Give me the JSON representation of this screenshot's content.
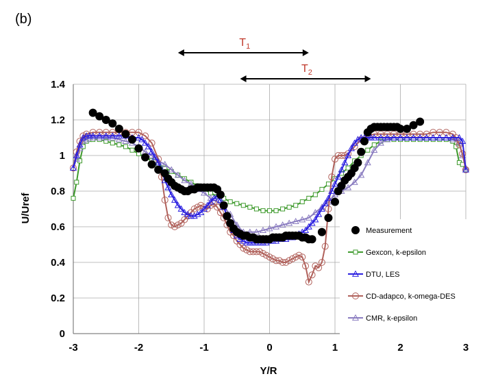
{
  "panel_label": "(b)",
  "colors": {
    "measurement": "#000000",
    "gexcon": "#3e9a2c",
    "dtu": "#2a1fe0",
    "cdadapco": "#b0605a",
    "cmr": "#8a7cc0",
    "grid": "#aaaaaa",
    "annotation": "#c0392b"
  },
  "annotations": [
    {
      "label": "T",
      "sub": "1",
      "x_start": -1.4,
      "x_end": 0.6
    },
    {
      "label": "T",
      "sub": "2",
      "x_start": -0.45,
      "x_end": 1.55
    }
  ],
  "chart_data": {
    "type": "line",
    "title": "",
    "xlabel": "Y/R",
    "ylabel": "U/Uref",
    "xlim": [
      -3,
      3
    ],
    "ylim": [
      0,
      1.4
    ],
    "xticks": [
      -3,
      -2,
      -1,
      0,
      1,
      2,
      3
    ],
    "yticks": [
      0,
      0.2,
      0.4,
      0.6,
      0.8,
      1,
      1.2,
      1.4
    ],
    "xtick_labels": [
      "-3",
      "-2",
      "-1",
      "0",
      "1",
      "2",
      "3"
    ],
    "ytick_labels": [
      "0",
      "0.2",
      "0.4",
      "0.6",
      "0.8",
      "1",
      "1.2",
      "1.4"
    ],
    "grid": true,
    "legend_position": "right",
    "series": [
      {
        "name": "Measurement",
        "style": "markers",
        "marker": "filled-circle",
        "x": [
          -2.7,
          -2.6,
          -2.5,
          -2.4,
          -2.3,
          -2.2,
          -2.1,
          -2.0,
          -1.9,
          -1.8,
          -1.7,
          -1.6,
          -1.55,
          -1.5,
          -1.45,
          -1.4,
          -1.35,
          -1.3,
          -1.25,
          -1.2,
          -1.15,
          -1.1,
          -1.05,
          -1.0,
          -0.95,
          -0.9,
          -0.85,
          -0.8,
          -0.75,
          -0.7,
          -0.65,
          -0.6,
          -0.55,
          -0.5,
          -0.45,
          -0.4,
          -0.35,
          -0.3,
          -0.25,
          -0.2,
          -0.15,
          -0.1,
          -0.05,
          0.0,
          0.05,
          0.1,
          0.15,
          0.2,
          0.25,
          0.3,
          0.35,
          0.4,
          0.45,
          0.5,
          0.55,
          0.6,
          0.65,
          0.8,
          0.9,
          1.0,
          1.05,
          1.1,
          1.15,
          1.2,
          1.25,
          1.3,
          1.35,
          1.4,
          1.45,
          1.5,
          1.55,
          1.6,
          1.65,
          1.7,
          1.75,
          1.8,
          1.85,
          1.9,
          1.95,
          2.0,
          2.1,
          2.2,
          2.3
        ],
        "y": [
          1.24,
          1.22,
          1.2,
          1.18,
          1.15,
          1.12,
          1.09,
          1.04,
          0.99,
          0.95,
          0.92,
          0.9,
          0.87,
          0.85,
          0.83,
          0.82,
          0.81,
          0.8,
          0.8,
          0.81,
          0.81,
          0.82,
          0.82,
          0.82,
          0.82,
          0.82,
          0.82,
          0.81,
          0.78,
          0.72,
          0.66,
          0.62,
          0.59,
          0.57,
          0.56,
          0.55,
          0.55,
          0.54,
          0.54,
          0.53,
          0.53,
          0.53,
          0.53,
          0.53,
          0.54,
          0.54,
          0.54,
          0.54,
          0.55,
          0.55,
          0.55,
          0.55,
          0.55,
          0.54,
          0.54,
          0.53,
          0.53,
          0.57,
          0.65,
          0.74,
          0.8,
          0.83,
          0.86,
          0.88,
          0.9,
          0.93,
          0.96,
          1.02,
          1.08,
          1.13,
          1.15,
          1.16,
          1.16,
          1.16,
          1.16,
          1.16,
          1.16,
          1.16,
          1.16,
          1.15,
          1.15,
          1.17,
          1.19
        ]
      },
      {
        "name": "Gexcon, k-epsilon",
        "style": "line-markers",
        "marker": "square",
        "x": [
          -3.0,
          -2.95,
          -2.9,
          -2.85,
          -2.8,
          -2.75,
          -2.7,
          -2.6,
          -2.5,
          -2.4,
          -2.3,
          -2.2,
          -2.1,
          -2.0,
          -1.9,
          -1.8,
          -1.7,
          -1.6,
          -1.5,
          -1.4,
          -1.3,
          -1.2,
          -1.1,
          -1.0,
          -0.9,
          -0.8,
          -0.7,
          -0.6,
          -0.5,
          -0.4,
          -0.3,
          -0.2,
          -0.1,
          0.0,
          0.1,
          0.2,
          0.3,
          0.4,
          0.5,
          0.6,
          0.7,
          0.8,
          0.9,
          1.0,
          1.1,
          1.2,
          1.3,
          1.4,
          1.5,
          1.6,
          1.7,
          1.8,
          1.9,
          2.0,
          2.1,
          2.2,
          2.3,
          2.4,
          2.5,
          2.6,
          2.7,
          2.8,
          2.85,
          2.9,
          2.95,
          3.0
        ],
        "y": [
          0.76,
          0.85,
          0.97,
          1.05,
          1.08,
          1.09,
          1.09,
          1.09,
          1.08,
          1.07,
          1.06,
          1.05,
          1.03,
          1.01,
          0.99,
          0.97,
          0.95,
          0.93,
          0.91,
          0.89,
          0.87,
          0.85,
          0.83,
          0.81,
          0.79,
          0.77,
          0.76,
          0.74,
          0.73,
          0.72,
          0.71,
          0.7,
          0.69,
          0.69,
          0.69,
          0.7,
          0.71,
          0.72,
          0.74,
          0.76,
          0.78,
          0.81,
          0.84,
          0.87,
          0.9,
          0.93,
          0.97,
          1.0,
          1.03,
          1.06,
          1.08,
          1.09,
          1.09,
          1.09,
          1.09,
          1.09,
          1.09,
          1.09,
          1.09,
          1.09,
          1.09,
          1.08,
          1.05,
          0.96,
          0.95,
          0.92
        ]
      },
      {
        "name": "DTU, LES",
        "style": "line-markers",
        "marker": "triangle",
        "x": [
          -3.0,
          -2.95,
          -2.9,
          -2.85,
          -2.8,
          -2.75,
          -2.7,
          -2.6,
          -2.5,
          -2.4,
          -2.3,
          -2.2,
          -2.1,
          -2.0,
          -1.95,
          -1.9,
          -1.85,
          -1.8,
          -1.75,
          -1.7,
          -1.65,
          -1.6,
          -1.55,
          -1.5,
          -1.45,
          -1.4,
          -1.35,
          -1.3,
          -1.25,
          -1.2,
          -1.15,
          -1.1,
          -1.05,
          -1.0,
          -0.95,
          -0.9,
          -0.85,
          -0.8,
          -0.75,
          -0.7,
          -0.65,
          -0.6,
          -0.55,
          -0.5,
          -0.45,
          -0.4,
          -0.35,
          -0.3,
          -0.25,
          -0.2,
          -0.15,
          -0.1,
          -0.05,
          0.0,
          0.05,
          0.1,
          0.15,
          0.2,
          0.25,
          0.3,
          0.35,
          0.4,
          0.45,
          0.5,
          0.55,
          0.6,
          0.65,
          0.7,
          0.75,
          0.8,
          0.85,
          0.9,
          0.95,
          1.0,
          1.05,
          1.1,
          1.15,
          1.2,
          1.25,
          1.3,
          1.35,
          1.4,
          1.45,
          1.5,
          1.55,
          1.6,
          1.7,
          1.8,
          1.9,
          2.0,
          2.1,
          2.2,
          2.3,
          2.4,
          2.5,
          2.6,
          2.7,
          2.8,
          2.9,
          2.95,
          3.0
        ],
        "y": [
          0.93,
          1.0,
          1.06,
          1.1,
          1.11,
          1.11,
          1.11,
          1.11,
          1.11,
          1.11,
          1.11,
          1.11,
          1.1,
          1.1,
          1.09,
          1.07,
          1.05,
          1.02,
          0.99,
          0.96,
          0.92,
          0.86,
          0.82,
          0.78,
          0.75,
          0.72,
          0.7,
          0.68,
          0.67,
          0.66,
          0.66,
          0.67,
          0.68,
          0.7,
          0.72,
          0.74,
          0.76,
          0.77,
          0.75,
          0.71,
          0.66,
          0.62,
          0.58,
          0.55,
          0.53,
          0.52,
          0.51,
          0.51,
          0.51,
          0.51,
          0.51,
          0.51,
          0.51,
          0.52,
          0.52,
          0.52,
          0.53,
          0.53,
          0.53,
          0.54,
          0.54,
          0.55,
          0.56,
          0.57,
          0.58,
          0.6,
          0.62,
          0.64,
          0.67,
          0.7,
          0.73,
          0.76,
          0.8,
          0.84,
          0.88,
          0.92,
          0.96,
          1.0,
          1.04,
          1.07,
          1.09,
          1.1,
          1.1,
          1.1,
          1.1,
          1.1,
          1.1,
          1.1,
          1.1,
          1.1,
          1.1,
          1.1,
          1.1,
          1.1,
          1.1,
          1.1,
          1.1,
          1.1,
          1.1,
          1.08,
          0.92
        ]
      },
      {
        "name": "CD-adapco, k-omega-DES",
        "style": "line-markers",
        "marker": "circle",
        "x": [
          -3.0,
          -2.95,
          -2.9,
          -2.85,
          -2.8,
          -2.7,
          -2.6,
          -2.5,
          -2.4,
          -2.3,
          -2.2,
          -2.1,
          -2.0,
          -1.9,
          -1.8,
          -1.7,
          -1.65,
          -1.6,
          -1.55,
          -1.5,
          -1.45,
          -1.4,
          -1.35,
          -1.3,
          -1.25,
          -1.2,
          -1.15,
          -1.1,
          -1.05,
          -1.0,
          -0.95,
          -0.9,
          -0.85,
          -0.8,
          -0.75,
          -0.7,
          -0.65,
          -0.6,
          -0.55,
          -0.5,
          -0.45,
          -0.4,
          -0.35,
          -0.3,
          -0.25,
          -0.2,
          -0.15,
          -0.1,
          -0.05,
          0.0,
          0.05,
          0.1,
          0.15,
          0.2,
          0.25,
          0.3,
          0.35,
          0.4,
          0.45,
          0.5,
          0.55,
          0.6,
          0.65,
          0.7,
          0.75,
          0.8,
          0.85,
          0.9,
          0.95,
          1.0,
          1.05,
          1.1,
          1.15,
          1.2,
          1.3,
          1.4,
          1.5,
          1.6,
          1.7,
          1.8,
          1.9,
          2.0,
          2.1,
          2.2,
          2.3,
          2.4,
          2.5,
          2.6,
          2.7,
          2.8,
          2.85,
          2.9,
          2.95,
          3.0
        ],
        "y": [
          0.93,
          1.02,
          1.08,
          1.11,
          1.12,
          1.13,
          1.13,
          1.13,
          1.13,
          1.13,
          1.13,
          1.13,
          1.13,
          1.11,
          1.07,
          0.98,
          0.88,
          0.75,
          0.65,
          0.61,
          0.6,
          0.61,
          0.62,
          0.64,
          0.66,
          0.68,
          0.7,
          0.71,
          0.72,
          0.71,
          0.7,
          0.72,
          0.73,
          0.71,
          0.68,
          0.65,
          0.61,
          0.57,
          0.55,
          0.52,
          0.5,
          0.48,
          0.47,
          0.46,
          0.46,
          0.46,
          0.46,
          0.45,
          0.44,
          0.43,
          0.42,
          0.41,
          0.41,
          0.4,
          0.4,
          0.41,
          0.42,
          0.43,
          0.44,
          0.43,
          0.38,
          0.29,
          0.33,
          0.38,
          0.37,
          0.4,
          0.49,
          0.7,
          0.88,
          0.98,
          1.0,
          1.0,
          1.0,
          1.01,
          1.05,
          1.09,
          1.11,
          1.12,
          1.12,
          1.12,
          1.12,
          1.12,
          1.12,
          1.12,
          1.12,
          1.12,
          1.13,
          1.13,
          1.13,
          1.12,
          1.1,
          1.06,
          1.01,
          0.92
        ]
      },
      {
        "name": "CMR, k-epsilon",
        "style": "line-markers",
        "marker": "triangle",
        "x": [
          -3.0,
          -2.95,
          -2.9,
          -2.85,
          -2.8,
          -2.75,
          -2.7,
          -2.6,
          -2.5,
          -2.4,
          -2.3,
          -2.2,
          -2.1,
          -2.0,
          -1.9,
          -1.8,
          -1.7,
          -1.6,
          -1.5,
          -1.4,
          -1.3,
          -1.2,
          -1.1,
          -1.0,
          -0.9,
          -0.8,
          -0.7,
          -0.6,
          -0.5,
          -0.4,
          -0.3,
          -0.2,
          -0.1,
          0.0,
          0.1,
          0.2,
          0.3,
          0.4,
          0.5,
          0.6,
          0.7,
          0.8,
          0.9,
          1.0,
          1.1,
          1.2,
          1.3,
          1.4,
          1.5,
          1.6,
          1.7,
          1.8,
          1.9,
          2.0,
          2.1,
          2.2,
          2.3,
          2.4,
          2.5,
          2.6,
          2.7,
          2.8,
          2.9,
          2.95,
          3.0
        ],
        "y": [
          0.93,
          0.98,
          1.04,
          1.08,
          1.09,
          1.1,
          1.1,
          1.1,
          1.1,
          1.1,
          1.09,
          1.08,
          1.07,
          1.05,
          1.02,
          1.0,
          0.97,
          0.95,
          0.92,
          0.89,
          0.86,
          0.84,
          0.81,
          0.79,
          0.76,
          0.74,
          0.71,
          0.67,
          0.61,
          0.57,
          0.57,
          0.57,
          0.58,
          0.59,
          0.6,
          0.61,
          0.62,
          0.63,
          0.64,
          0.65,
          0.68,
          0.71,
          0.74,
          0.78,
          0.8,
          0.82,
          0.85,
          0.89,
          0.96,
          1.03,
          1.07,
          1.09,
          1.1,
          1.1,
          1.1,
          1.1,
          1.1,
          1.1,
          1.1,
          1.1,
          1.1,
          1.09,
          1.07,
          1.0,
          0.93
        ]
      }
    ]
  }
}
